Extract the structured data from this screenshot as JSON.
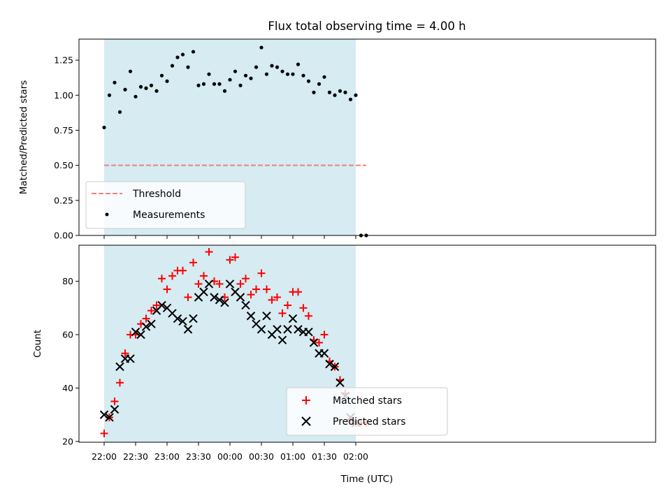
{
  "chart_data": [
    {
      "type": "scatter",
      "title": "Flux total observing time = 4.00 h",
      "ylabel": "Matched/Predicted stars",
      "xlabel": "",
      "ylim": [
        0,
        1.4
      ],
      "yticks": [
        "0.00",
        "0.25",
        "0.50",
        "0.75",
        "1.00",
        "1.25"
      ],
      "shaded_interval_minutes": [
        0,
        240
      ],
      "shade_color": "#add8e6",
      "legend_position": "lower-left",
      "threshold": {
        "name": "Threshold",
        "value": 0.5,
        "x_range_minutes": [
          0,
          250
        ],
        "color": "#f08080",
        "style": "dashed"
      },
      "series": [
        {
          "name": "Measurements",
          "marker": "dot",
          "color": "#000000",
          "x_minutes": [
            0,
            5,
            10,
            15,
            20,
            25,
            30,
            35,
            40,
            45,
            50,
            55,
            60,
            65,
            70,
            75,
            80,
            85,
            90,
            95,
            100,
            105,
            110,
            115,
            120,
            125,
            130,
            135,
            140,
            145,
            150,
            155,
            160,
            165,
            170,
            175,
            180,
            185,
            190,
            195,
            200,
            205,
            210,
            215,
            220,
            225,
            230,
            235,
            240,
            245,
            250
          ],
          "values": [
            0.77,
            1.0,
            1.09,
            0.88,
            1.04,
            1.17,
            0.99,
            1.06,
            1.05,
            1.07,
            1.03,
            1.14,
            1.1,
            1.21,
            1.27,
            1.29,
            1.2,
            1.31,
            1.07,
            1.08,
            1.15,
            1.08,
            1.08,
            1.03,
            1.11,
            1.17,
            1.07,
            1.14,
            1.12,
            1.2,
            1.34,
            1.15,
            1.21,
            1.2,
            1.17,
            1.15,
            1.15,
            1.22,
            1.14,
            1.1,
            1.02,
            1.08,
            1.13,
            1.02,
            1.0,
            1.03,
            1.02,
            0.97,
            1.0,
            0.0,
            0.0
          ]
        }
      ]
    },
    {
      "type": "scatter",
      "title": "",
      "xlabel": "Time (UTC)",
      "ylabel": "Count",
      "ylim": [
        19.7,
        93.5
      ],
      "yticks": [
        "20",
        "40",
        "60",
        "80"
      ],
      "xticks": [
        "22:00",
        "22:30",
        "23:00",
        "23:30",
        "00:00",
        "00:30",
        "01:00",
        "01:30",
        "02:00"
      ],
      "x_start_label": "22:00",
      "shaded_interval_minutes": [
        0,
        240
      ],
      "shade_color": "#add8e6",
      "legend_position": "lower-center",
      "series": [
        {
          "name": "Matched stars",
          "marker": "plus",
          "color": "#ff0000",
          "x_minutes": [
            0,
            5,
            10,
            15,
            20,
            25,
            30,
            35,
            40,
            45,
            50,
            55,
            60,
            65,
            70,
            75,
            80,
            85,
            90,
            95,
            100,
            105,
            110,
            115,
            120,
            125,
            130,
            135,
            140,
            145,
            150,
            155,
            160,
            165,
            170,
            175,
            180,
            185,
            190,
            195,
            200,
            205,
            210,
            215,
            220,
            225,
            230,
            235,
            240,
            245,
            250
          ],
          "values": [
            23,
            29,
            35,
            42,
            53,
            60,
            60,
            64,
            66,
            69,
            71,
            81,
            77,
            82,
            84,
            84,
            74,
            87,
            79,
            82,
            91,
            80,
            79,
            74,
            88,
            89,
            79,
            81,
            75,
            77,
            83,
            77,
            73,
            74,
            68,
            71,
            76,
            76,
            70,
            67,
            58,
            57,
            60,
            50,
            48,
            43,
            38,
            28,
            27,
            27,
            27
          ]
        },
        {
          "name": "Predicted stars",
          "marker": "x",
          "color": "#000000",
          "x_minutes": [
            0,
            5,
            10,
            15,
            20,
            25,
            30,
            35,
            40,
            45,
            50,
            55,
            60,
            65,
            70,
            75,
            80,
            85,
            90,
            95,
            100,
            105,
            110,
            115,
            120,
            125,
            130,
            135,
            140,
            145,
            150,
            155,
            160,
            165,
            170,
            175,
            180,
            185,
            190,
            195,
            200,
            205,
            210,
            215,
            220,
            225,
            230,
            235,
            240
          ],
          "values": [
            30,
            29,
            32,
            48,
            51,
            51,
            61,
            60,
            63,
            64,
            69,
            71,
            70,
            68,
            66,
            65,
            62,
            66,
            74,
            76,
            79,
            74,
            73,
            72,
            79,
            76,
            74,
            71,
            67,
            64,
            62,
            67,
            60,
            62,
            58,
            62,
            66,
            62,
            61,
            61,
            57,
            53,
            53,
            49,
            48,
            42,
            37,
            29,
            27
          ]
        }
      ]
    }
  ]
}
